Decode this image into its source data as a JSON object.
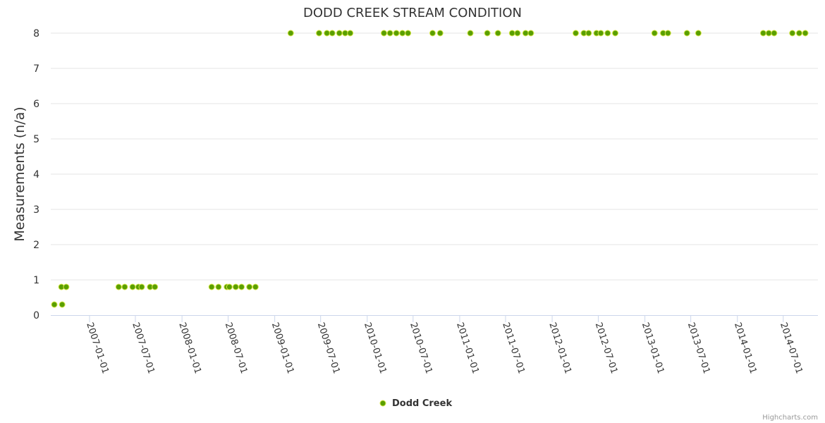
{
  "chart_data": {
    "type": "scatter",
    "title": "DODD CREEK STREAM CONDITION",
    "ylabel": "Measurements (n/a)",
    "xlabel": "",
    "ylim": [
      0,
      8
    ],
    "yticks": [
      "0",
      "1",
      "2",
      "3",
      "4",
      "5",
      "6",
      "7",
      "8"
    ],
    "xlim": [
      "2006-08-01",
      "2014-11-15"
    ],
    "xticks": [
      "2007-01-01",
      "2007-07-01",
      "2008-01-01",
      "2008-07-01",
      "2009-01-01",
      "2009-07-01",
      "2010-01-01",
      "2010-07-01",
      "2011-01-01",
      "2011-07-01",
      "2012-01-01",
      "2012-07-01",
      "2013-01-01",
      "2013-07-01",
      "2014-01-01",
      "2014-07-01"
    ],
    "series": [
      {
        "name": "Dodd Creek",
        "color": "#5a9f00",
        "points": [
          [
            "2006-08-15",
            0.3
          ],
          [
            "2006-09-12",
            0.8
          ],
          [
            "2006-09-15",
            0.3
          ],
          [
            "2006-10-01",
            0.8
          ],
          [
            "2007-04-26",
            0.8
          ],
          [
            "2007-05-20",
            0.8
          ],
          [
            "2007-06-20",
            0.8
          ],
          [
            "2007-07-13",
            0.8
          ],
          [
            "2007-07-26",
            0.8
          ],
          [
            "2007-08-28",
            0.8
          ],
          [
            "2007-09-16",
            0.8
          ],
          [
            "2008-04-27",
            0.8
          ],
          [
            "2008-05-24",
            0.8
          ],
          [
            "2008-06-26",
            0.8
          ],
          [
            "2008-07-06",
            0.8
          ],
          [
            "2008-07-31",
            0.8
          ],
          [
            "2008-08-23",
            0.8
          ],
          [
            "2008-09-23",
            0.8
          ],
          [
            "2008-10-17",
            0.8
          ],
          [
            "2009-03-05",
            8
          ],
          [
            "2009-06-25",
            8
          ],
          [
            "2009-07-26",
            8
          ],
          [
            "2009-08-16",
            8
          ],
          [
            "2009-09-13",
            8
          ],
          [
            "2009-10-06",
            8
          ],
          [
            "2009-10-26",
            8
          ],
          [
            "2010-03-08",
            8
          ],
          [
            "2010-04-01",
            8
          ],
          [
            "2010-04-26",
            8
          ],
          [
            "2010-05-20",
            8
          ],
          [
            "2010-06-11",
            8
          ],
          [
            "2010-09-16",
            8
          ],
          [
            "2010-10-16",
            8
          ],
          [
            "2011-02-12",
            8
          ],
          [
            "2011-04-20",
            8
          ],
          [
            "2011-06-01",
            8
          ],
          [
            "2011-07-27",
            8
          ],
          [
            "2011-08-17",
            8
          ],
          [
            "2011-09-18",
            8
          ],
          [
            "2011-10-09",
            8
          ],
          [
            "2012-04-03",
            8
          ],
          [
            "2012-05-05",
            8
          ],
          [
            "2012-05-24",
            8
          ],
          [
            "2012-06-24",
            8
          ],
          [
            "2012-07-11",
            8
          ],
          [
            "2012-08-07",
            8
          ],
          [
            "2012-09-06",
            8
          ],
          [
            "2013-02-08",
            8
          ],
          [
            "2013-03-14",
            8
          ],
          [
            "2013-04-02",
            8
          ],
          [
            "2013-06-16",
            8
          ],
          [
            "2013-07-31",
            8
          ],
          [
            "2014-04-13",
            8
          ],
          [
            "2014-05-05",
            8
          ],
          [
            "2014-05-26",
            8
          ],
          [
            "2014-08-06",
            8
          ],
          [
            "2014-09-02",
            8
          ],
          [
            "2014-09-26",
            8
          ]
        ]
      }
    ],
    "legend": "bottom-center"
  },
  "credits": "Highcharts.com"
}
